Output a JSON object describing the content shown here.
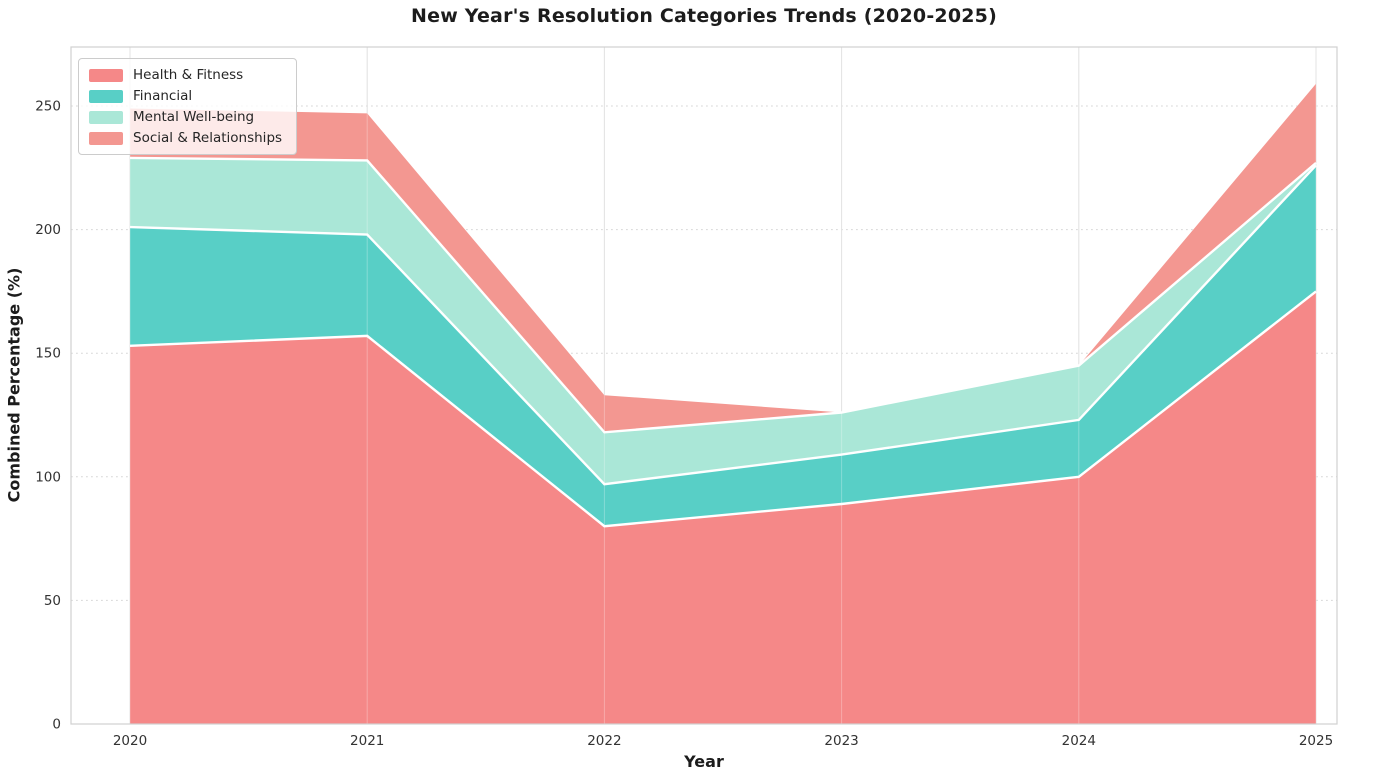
{
  "title": "New Year's Resolution Categories Trends (2020-2025)",
  "axes": {
    "xlabel": "Year",
    "ylabel": "Combined Percentage (%)"
  },
  "chart_data": {
    "type": "area",
    "stacked": true,
    "title": "New Year's Resolution Categories Trends (2020-2025)",
    "xlabel": "Year",
    "ylabel": "Combined Percentage (%)",
    "x": [
      2020,
      2021,
      2022,
      2023,
      2024,
      2025
    ],
    "series": [
      {
        "name": "Health & Fitness",
        "color": "#F58888",
        "values": [
          153,
          157,
          80,
          89,
          100,
          175
        ]
      },
      {
        "name": "Financial",
        "color": "#58CFC6",
        "values": [
          48,
          41,
          17,
          20,
          23,
          51
        ]
      },
      {
        "name": "Mental Well-being",
        "color": "#AAE7D7",
        "values": [
          28,
          30,
          21,
          17,
          22,
          1
        ]
      },
      {
        "name": "Social & Relationships",
        "color": "#F39791",
        "values": [
          20,
          19,
          15,
          0,
          0,
          32
        ]
      }
    ],
    "yticks": [
      0,
      50,
      100,
      150,
      200,
      250
    ],
    "ylim": [
      0,
      273
    ],
    "legend_position": "upper left",
    "grid": {
      "horizontal": "dashed",
      "vertical": "solid"
    },
    "edge_color": "#ffffff"
  },
  "colors": {
    "grid": "#d9d9d9",
    "spine": "#d0d0d0",
    "tick_text": "#333333"
  }
}
